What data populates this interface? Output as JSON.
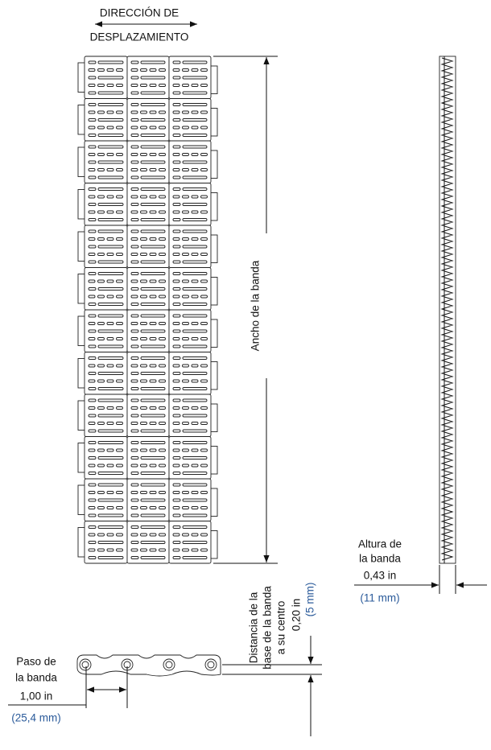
{
  "direction_label": [
    "DIRECCIÓN DE",
    "DESPLAZAMIENTO"
  ],
  "width_label": "Ancho de la banda",
  "height": {
    "label": [
      "Altura de",
      "la banda"
    ],
    "imperial": "0,43 in",
    "metric": "(11 mm)"
  },
  "center_distance": {
    "label": [
      "Distancia de la",
      "base de la banda",
      "a su centro"
    ],
    "imperial": "0,20 in",
    "metric": "(5 mm)"
  },
  "pitch": {
    "label": [
      "Paso de",
      "la banda"
    ],
    "imperial": "1,00 in",
    "metric": "(25,4 mm)"
  }
}
